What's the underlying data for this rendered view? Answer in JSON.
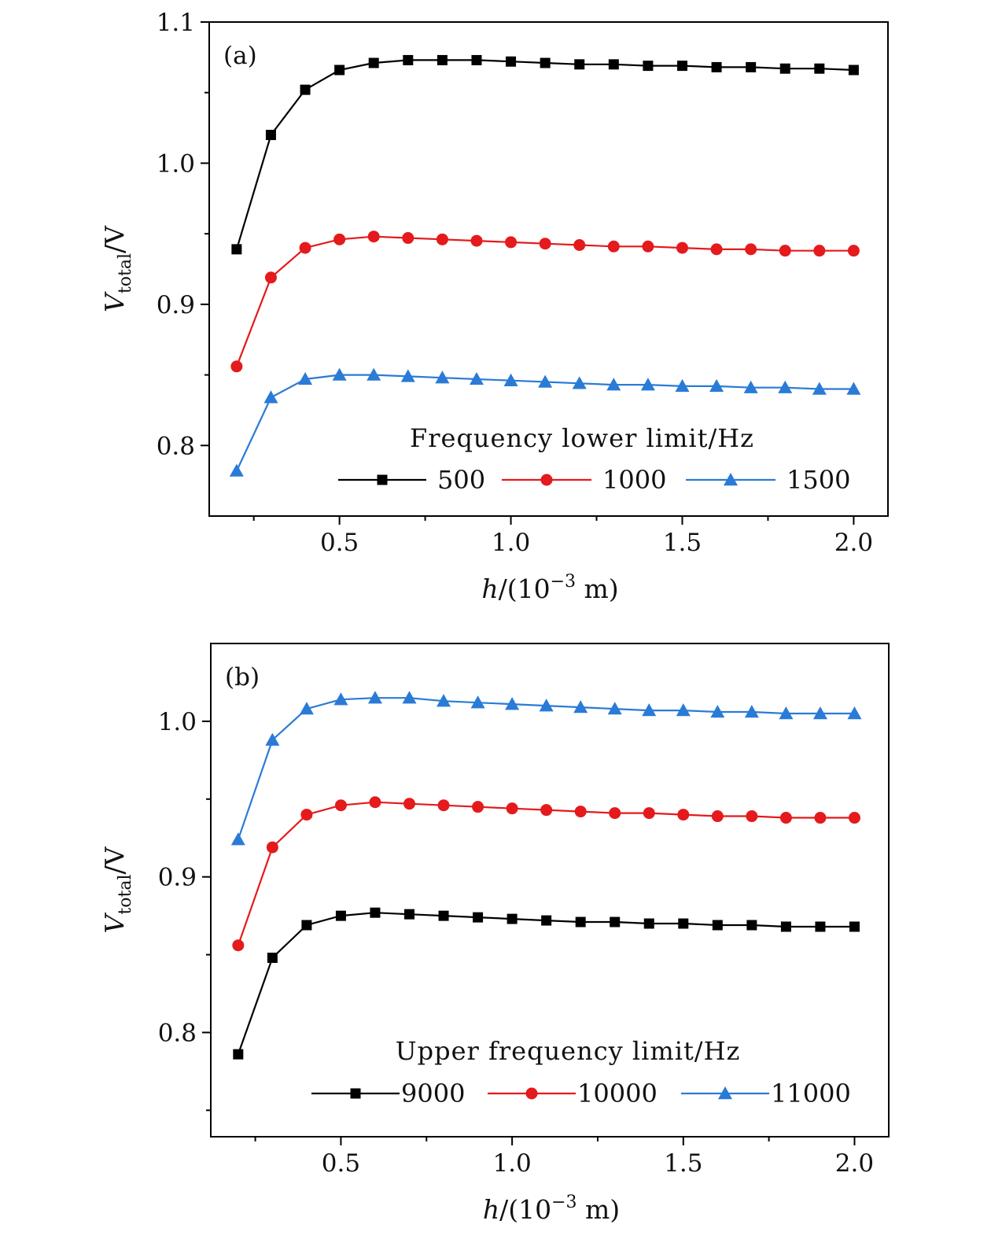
{
  "chart_data": [
    {
      "type": "line",
      "panel_label": "(a)",
      "xlabel_var": "h",
      "xlabel_rest": "/(10",
      "xlabel_exp": "−3",
      "xlabel_unit": " m)",
      "ylabel_var": "V",
      "ylabel_sub": "total",
      "ylabel_unit": "/V",
      "xlim": [
        0.12,
        2.1
      ],
      "ylim": [
        0.75,
        1.1
      ],
      "xticks": [
        0.5,
        1.0,
        1.5,
        2.0
      ],
      "xtick_labels": [
        "0.5",
        "1.0",
        "1.5",
        "2.0"
      ],
      "xticks_minor": [
        0.25,
        0.75,
        1.25,
        1.75
      ],
      "yticks": [
        0.8,
        0.9,
        1.0,
        1.1
      ],
      "ytick_labels": [
        "0.8",
        "0.9",
        "1.0",
        "1.1"
      ],
      "yticks_minor": [
        0.85,
        0.95,
        1.05
      ],
      "legend_title": "Frequency lower limit/Hz",
      "legend_position": "bottom-right",
      "x": [
        0.2,
        0.3,
        0.4,
        0.5,
        0.6,
        0.7,
        0.8,
        0.9,
        1.0,
        1.1,
        1.2,
        1.3,
        1.4,
        1.5,
        1.6,
        1.7,
        1.8,
        1.9,
        2.0
      ],
      "series": [
        {
          "name": "500",
          "color": "#000000",
          "marker": "square",
          "values": [
            0.939,
            1.02,
            1.052,
            1.066,
            1.071,
            1.073,
            1.073,
            1.073,
            1.072,
            1.071,
            1.07,
            1.07,
            1.069,
            1.069,
            1.068,
            1.068,
            1.067,
            1.067,
            1.066
          ]
        },
        {
          "name": "1000",
          "color": "#e41a1c",
          "marker": "circle",
          "values": [
            0.856,
            0.919,
            0.94,
            0.946,
            0.948,
            0.947,
            0.946,
            0.945,
            0.944,
            0.943,
            0.942,
            0.941,
            0.941,
            0.94,
            0.939,
            0.939,
            0.938,
            0.938,
            0.938
          ]
        },
        {
          "name": "1500",
          "color": "#2a7bd6",
          "marker": "triangle",
          "values": [
            0.782,
            0.834,
            0.847,
            0.85,
            0.85,
            0.849,
            0.848,
            0.847,
            0.846,
            0.845,
            0.844,
            0.843,
            0.843,
            0.842,
            0.842,
            0.841,
            0.841,
            0.84,
            0.84
          ]
        }
      ]
    },
    {
      "type": "line",
      "panel_label": "(b)",
      "xlabel_var": "h",
      "xlabel_rest": "/(10",
      "xlabel_exp": "−3",
      "xlabel_unit": " m)",
      "ylabel_var": "V",
      "ylabel_sub": "total",
      "ylabel_unit": "/V",
      "xlim": [
        0.12,
        2.1
      ],
      "ylim": [
        0.733,
        1.05
      ],
      "xticks": [
        0.5,
        1.0,
        1.5,
        2.0
      ],
      "xtick_labels": [
        "0.5",
        "1.0",
        "1.5",
        "2.0"
      ],
      "xticks_minor": [
        0.25,
        0.75,
        1.25,
        1.75
      ],
      "yticks": [
        0.8,
        0.9,
        1.0
      ],
      "ytick_labels": [
        "0.8",
        "0.9",
        "1.0"
      ],
      "yticks_minor": [
        0.75,
        0.85,
        0.95
      ],
      "legend_title": "Upper frequency limit/Hz",
      "legend_position": "bottom-right",
      "x": [
        0.2,
        0.3,
        0.4,
        0.5,
        0.6,
        0.7,
        0.8,
        0.9,
        1.0,
        1.1,
        1.2,
        1.3,
        1.4,
        1.5,
        1.6,
        1.7,
        1.8,
        1.9,
        2.0
      ],
      "series": [
        {
          "name": "9000",
          "color": "#000000",
          "marker": "square",
          "values": [
            0.786,
            0.848,
            0.869,
            0.875,
            0.877,
            0.876,
            0.875,
            0.874,
            0.873,
            0.872,
            0.871,
            0.871,
            0.87,
            0.87,
            0.869,
            0.869,
            0.868,
            0.868,
            0.868
          ]
        },
        {
          "name": "10000",
          "color": "#e41a1c",
          "marker": "circle",
          "values": [
            0.856,
            0.919,
            0.94,
            0.946,
            0.948,
            0.947,
            0.946,
            0.945,
            0.944,
            0.943,
            0.942,
            0.941,
            0.941,
            0.94,
            0.939,
            0.939,
            0.938,
            0.938,
            0.938
          ]
        },
        {
          "name": "11000",
          "color": "#2a7bd6",
          "marker": "triangle",
          "values": [
            0.924,
            0.988,
            1.008,
            1.014,
            1.015,
            1.015,
            1.013,
            1.012,
            1.011,
            1.01,
            1.009,
            1.008,
            1.007,
            1.007,
            1.006,
            1.006,
            1.005,
            1.005,
            1.005
          ]
        }
      ]
    }
  ]
}
